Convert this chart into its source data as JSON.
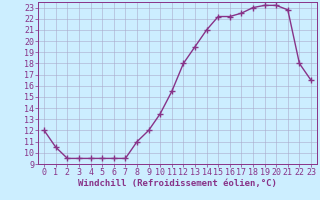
{
  "x": [
    0,
    1,
    2,
    3,
    4,
    5,
    6,
    7,
    8,
    9,
    10,
    11,
    12,
    13,
    14,
    15,
    16,
    17,
    18,
    19,
    20,
    21,
    22,
    23
  ],
  "y": [
    12.0,
    10.5,
    9.5,
    9.5,
    9.5,
    9.5,
    9.5,
    9.5,
    11.0,
    12.0,
    13.5,
    15.5,
    18.0,
    19.5,
    21.0,
    22.2,
    22.2,
    22.5,
    23.0,
    23.2,
    23.2,
    22.8,
    18.0,
    16.5
  ],
  "line_color": "#883388",
  "marker": "+",
  "xlabel": "Windchill (Refroidissement éolien,°C)",
  "ylim": [
    9,
    23.5
  ],
  "xlim": [
    -0.5,
    23.5
  ],
  "yticks": [
    9,
    10,
    11,
    12,
    13,
    14,
    15,
    16,
    17,
    18,
    19,
    20,
    21,
    22,
    23
  ],
  "xticks": [
    0,
    1,
    2,
    3,
    4,
    5,
    6,
    7,
    8,
    9,
    10,
    11,
    12,
    13,
    14,
    15,
    16,
    17,
    18,
    19,
    20,
    21,
    22,
    23
  ],
  "bg_color": "#cceeff",
  "grid_color": "#aaaacc",
  "tick_color": "#883388",
  "label_color": "#883388",
  "xlabel_fontsize": 6.5,
  "tick_fontsize": 6.0,
  "linewidth": 1.0,
  "markersize": 4
}
